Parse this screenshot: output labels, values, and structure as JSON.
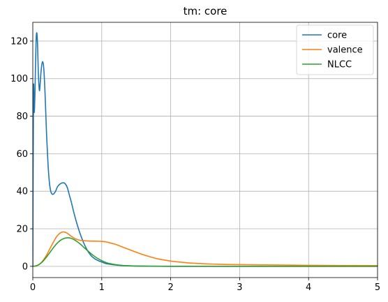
{
  "chart_data": {
    "type": "line",
    "title": "tm: core",
    "xlabel": "",
    "ylabel": "",
    "xlim": [
      0,
      5
    ],
    "ylim": [
      -6,
      130
    ],
    "xticks": [
      0,
      1,
      2,
      3,
      4,
      5
    ],
    "xtick_labels": [
      "0",
      "1",
      "2",
      "3",
      "4",
      "5"
    ],
    "yticks": [
      0,
      20,
      40,
      60,
      80,
      100,
      120
    ],
    "ytick_labels": [
      "0",
      "20",
      "40",
      "60",
      "80",
      "100",
      "120"
    ],
    "grid": true,
    "legend_position": "top-right",
    "series": [
      {
        "name": "core",
        "color": "#1f77b4",
        "x": [
          0,
          0.01,
          0.02,
          0.03,
          0.04,
          0.05,
          0.06,
          0.07,
          0.08,
          0.09,
          0.1,
          0.12,
          0.14,
          0.16,
          0.18,
          0.2,
          0.22,
          0.24,
          0.26,
          0.28,
          0.3,
          0.33,
          0.36,
          0.4,
          0.44,
          0.47,
          0.5,
          0.53,
          0.56,
          0.6,
          0.65,
          0.7,
          0.75,
          0.8,
          0.85,
          0.9,
          0.95,
          1.0,
          1.05,
          1.1,
          1.2,
          1.3,
          1.4,
          1.5,
          1.6,
          1.8,
          2.0,
          2.5,
          3.0,
          4.0,
          5.0
        ],
        "y": [
          0,
          93,
          82,
          90,
          108,
          122,
          124,
          117,
          103,
          96,
          94,
          104,
          109,
          105,
          90,
          70,
          55,
          45,
          40,
          38.5,
          38.5,
          40,
          42.5,
          44,
          44.5,
          44,
          42,
          38,
          34,
          28,
          21.5,
          16,
          11.5,
          8,
          5.5,
          4,
          3,
          2.3,
          1.6,
          1.2,
          0.7,
          0.4,
          0.25,
          0.15,
          0.1,
          0.05,
          0.02,
          0.01,
          0,
          0,
          0
        ]
      },
      {
        "name": "valence",
        "color": "#ff7f0e",
        "x": [
          0,
          0.05,
          0.1,
          0.15,
          0.2,
          0.25,
          0.3,
          0.35,
          0.4,
          0.45,
          0.5,
          0.55,
          0.6,
          0.65,
          0.7,
          0.8,
          0.9,
          1.0,
          1.05,
          1.1,
          1.2,
          1.3,
          1.4,
          1.5,
          1.6,
          1.7,
          1.8,
          1.9,
          2.0,
          2.2,
          2.4,
          2.6,
          2.8,
          3.0,
          3.5,
          4.0,
          4.5,
          5.0
        ],
        "y": [
          0,
          0.2,
          1.2,
          3.2,
          6,
          9.5,
          13,
          16,
          17.8,
          18.3,
          17.6,
          16.2,
          15,
          14.2,
          13.8,
          13.5,
          13.4,
          13.3,
          13.1,
          12.7,
          11.7,
          10.3,
          8.9,
          7.5,
          6.2,
          5.1,
          4.1,
          3.4,
          2.8,
          2.0,
          1.5,
          1.2,
          1.0,
          0.9,
          0.7,
          0.55,
          0.45,
          0.4
        ]
      },
      {
        "name": "NLCC",
        "color": "#2ca02c",
        "x": [
          0,
          0.05,
          0.1,
          0.15,
          0.2,
          0.25,
          0.3,
          0.35,
          0.4,
          0.45,
          0.5,
          0.55,
          0.6,
          0.65,
          0.7,
          0.75,
          0.8,
          0.85,
          0.9,
          0.95,
          1.0,
          1.05,
          1.1,
          1.2,
          1.3,
          1.4,
          1.5,
          1.7,
          2.0,
          2.5,
          3.0,
          4.0,
          5.0
        ],
        "y": [
          0,
          0.3,
          1.2,
          2.8,
          5,
          7.5,
          10,
          12.2,
          13.8,
          14.8,
          15.2,
          15,
          14.2,
          13,
          11.5,
          9.8,
          8.2,
          6.6,
          5.2,
          4,
          3,
          2.2,
          1.6,
          0.9,
          0.5,
          0.3,
          0.15,
          0.05,
          0.02,
          0,
          0,
          0,
          0
        ]
      }
    ]
  }
}
